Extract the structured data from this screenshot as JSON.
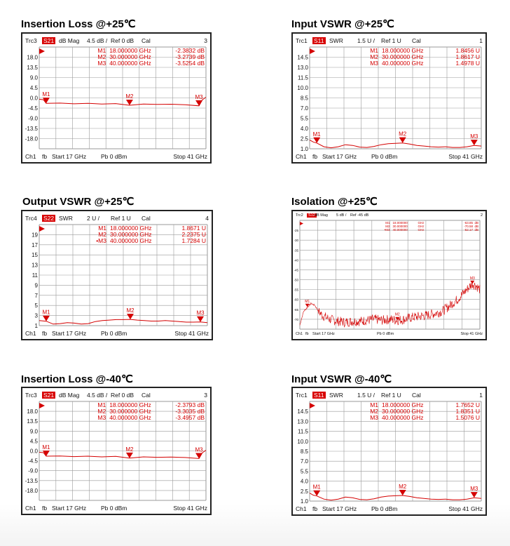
{
  "colors": {
    "trace": "#d40000",
    "grid": "#9a9a9a",
    "frame": "#222222",
    "badge": "#d80000"
  },
  "chart_data": [
    {
      "type": "line",
      "title": "Insertion Loss @+25℃",
      "header": {
        "trc": "Trc3",
        "param": "S21",
        "format": "dB Mag",
        "scale": "4.5 dB /",
        "ref": "Ref 0 dB",
        "cal": "Cal",
        "num": "3"
      },
      "footer": {
        "ch": "Ch1",
        "fb": "fb",
        "start": "Start  17 GHz",
        "pb": "Pb    0 dBm",
        "stop": "Stop  41 GHz"
      },
      "yticks": [
        "18.0",
        "13.5",
        "9.0",
        "4.5",
        "0.0",
        "-4.5",
        "-9.0",
        "-13.5",
        "-18.0"
      ],
      "ylim": [
        -22.5,
        22.5
      ],
      "xlim": [
        17,
        41
      ],
      "series": [
        {
          "x": [
            17,
            17.6,
            18,
            20,
            22,
            24,
            26,
            28,
            30,
            32,
            34,
            36,
            38,
            40,
            40.5,
            41
          ],
          "y": [
            -0.6,
            -0.8,
            -2.38,
            -2.3,
            -2.6,
            -2.4,
            -2.7,
            -2.5,
            -3.27,
            -2.7,
            -2.9,
            -2.8,
            -3.0,
            -3.52,
            -0.8,
            0.3
          ]
        }
      ],
      "markers": [
        {
          "label": "M1",
          "name": "M1",
          "freq": "18.000000  GHz",
          "value": "-2.3832  dB",
          "x": 18,
          "y": -2.38
        },
        {
          "label": "M2",
          "name": "M2",
          "freq": "30.000000  GHz",
          "value": "-3.2739  dB",
          "x": 30,
          "y": -3.27
        },
        {
          "label": "M3",
          "name": "M3",
          "freq": "40.000000  GHz",
          "value": "-3.5254  dB",
          "x": 40,
          "y": -3.52
        }
      ]
    },
    {
      "type": "line",
      "title": "Input VSWR @+25℃",
      "header": {
        "trc": "Trc1",
        "param": "S11",
        "format": "SWR",
        "scale": "1.5 U /",
        "ref": "Ref 1 U",
        "cal": "Cal",
        "num": "1"
      },
      "footer": {
        "ch": "Ch1",
        "fb": "fb",
        "start": "Start  17 GHz",
        "pb": "Pb    0 dBm",
        "stop": "Stop  41 GHz"
      },
      "yticks": [
        "14.5",
        "13.0",
        "11.5",
        "10.0",
        "8.5",
        "7.0",
        "5.5",
        "4.0",
        "2.5",
        "1.0"
      ],
      "ylim": [
        1,
        16
      ],
      "xlim": [
        17,
        41
      ],
      "series": [
        {
          "x": [
            17,
            17.5,
            18,
            19,
            20,
            21,
            22,
            23,
            24,
            25,
            26,
            27,
            28,
            29,
            30,
            31,
            32,
            33,
            34,
            35,
            36,
            37,
            38,
            39,
            40,
            41
          ],
          "y": [
            2.3,
            2.0,
            1.85,
            1.3,
            1.15,
            1.3,
            1.6,
            1.5,
            1.25,
            1.2,
            1.35,
            1.6,
            1.75,
            1.8,
            1.86,
            1.7,
            1.5,
            1.4,
            1.3,
            1.25,
            1.3,
            1.2,
            1.2,
            1.3,
            1.5,
            1.4
          ]
        }
      ],
      "markers": [
        {
          "label": "M1",
          "name": "M1",
          "freq": "18.000000  GHz",
          "value": "1.8456  U",
          "x": 18,
          "y": 1.85
        },
        {
          "label": "M2",
          "name": "M2",
          "freq": "30.000000  GHz",
          "value": "1.8617  U",
          "x": 30,
          "y": 1.86
        },
        {
          "label": "M3",
          "name": "M3",
          "freq": "40.000000  GHz",
          "value": "1.4978  U",
          "x": 40,
          "y": 1.5
        }
      ]
    },
    {
      "type": "line",
      "title": "Output VSWR @+25℃",
      "header": {
        "trc": "Trc4",
        "param": "S22",
        "format": "SWR",
        "scale": "2 U /",
        "ref": "Ref 1 U",
        "cal": "Cal",
        "num": "4"
      },
      "footer": {
        "ch": "Ch1",
        "fb": "fb",
        "start": "Start  17 GHz",
        "pb": "Pb    0 dBm",
        "stop": "Stop  41 GHz"
      },
      "yticks": [
        "19",
        "17",
        "15",
        "13",
        "11",
        "9",
        "7",
        "5",
        "3",
        "1"
      ],
      "ylim": [
        1,
        21
      ],
      "xlim": [
        17,
        41
      ],
      "series": [
        {
          "x": [
            17,
            18,
            19,
            20,
            21,
            22,
            23,
            24,
            25,
            26,
            27,
            28,
            29,
            30,
            31,
            32,
            33,
            34,
            35,
            36,
            37,
            38,
            39,
            40,
            41
          ],
          "y": [
            2.0,
            1.88,
            1.3,
            1.4,
            1.6,
            1.5,
            1.3,
            1.4,
            1.8,
            2.0,
            2.1,
            2.2,
            2.2,
            2.24,
            2.1,
            2.0,
            1.9,
            1.9,
            2.0,
            1.9,
            1.8,
            1.7,
            1.7,
            1.73,
            1.6
          ]
        }
      ],
      "markers": [
        {
          "label": "M1",
          "name": "M1",
          "freq": "18.000000  GHz",
          "value": "1.8671  U",
          "x": 18,
          "y": 1.87
        },
        {
          "label": "M2",
          "name": "M2",
          "freq": "30.000000  GHz",
          "value": "2.2375  U",
          "x": 30,
          "y": 2.24
        },
        {
          "label": "M3",
          "name": "•M3",
          "freq": "40.000000  GHz",
          "value": "1.7284  U",
          "x": 40,
          "y": 1.73
        }
      ]
    },
    {
      "type": "line",
      "title": "Isolation @+25℃",
      "header": {
        "trc": "Trc2",
        "param": "S12",
        "format": "dB Mag",
        "scale": "5 dB /",
        "ref": "Ref -45 dB",
        "cal": "",
        "num": "2"
      },
      "footer": {
        "ch": "Ch1",
        "fb": "fb",
        "start": "Start  17 GHz",
        "pb": "Pb    0 dBm",
        "stop": "Stop  41 GHz"
      },
      "yticks": [
        "-25",
        "-30",
        "-35",
        "-40",
        "-45",
        "-50",
        "-55",
        "-60",
        "-65",
        "-70"
      ],
      "ylim": [
        -75,
        -20
      ],
      "xlim": [
        17,
        41
      ],
      "series": [
        {
          "x": [
            17,
            17.5,
            18,
            18.5,
            19,
            19.5,
            20,
            21,
            22,
            23,
            24,
            25,
            26,
            27,
            28,
            29,
            30,
            31,
            32,
            33,
            34,
            35,
            36,
            37,
            38,
            39,
            39.5,
            40,
            40.5,
            41
          ],
          "y": [
            -73,
            -66,
            -64,
            -62,
            -63,
            -66,
            -68,
            -70,
            -71,
            -71.5,
            -71,
            -71,
            -70.5,
            -70,
            -70.5,
            -70,
            -70.5,
            -70,
            -69,
            -68.5,
            -68,
            -67,
            -66,
            -63,
            -60,
            -56,
            -54,
            -52,
            -53,
            -55
          ]
        }
      ],
      "noise": 2.5,
      "markers": [
        {
          "label": "M1",
          "name": "M1",
          "freq": "18.000000",
          "unit": "GHz",
          "value": "-63.85",
          "vunit": "dB",
          "x": 18,
          "y": -63.85
        },
        {
          "label": "M2",
          "name": "M2",
          "freq": "30.000000",
          "unit": "GHz",
          "value": "-70.58",
          "vunit": "dB",
          "x": 30,
          "y": -70.58
        },
        {
          "label": "M3",
          "name": "•M3",
          "freq": "40.000000",
          "unit": "GHz",
          "value": "-52.17",
          "vunit": "dB",
          "x": 40,
          "y": -52.17
        }
      ]
    },
    {
      "type": "line",
      "title": "Insertion Loss @-40℃",
      "header": {
        "trc": "Trc3",
        "param": "S21",
        "format": "dB Mag",
        "scale": "4.5 dB /",
        "ref": "Ref 0 dB",
        "cal": "Cal",
        "num": "3"
      },
      "footer": {
        "ch": "Ch1",
        "fb": "fb",
        "start": "Start  17 GHz",
        "pb": "Pb    0 dBm",
        "stop": "Stop  41 GHz"
      },
      "yticks": [
        "18.0",
        "13.5",
        "9.0",
        "4.5",
        "0.0",
        "-4.5",
        "-9.0",
        "-13.5",
        "-18.0"
      ],
      "ylim": [
        -22.5,
        22.5
      ],
      "xlim": [
        17,
        41
      ],
      "series": [
        {
          "x": [
            17,
            17.6,
            18,
            20,
            22,
            24,
            26,
            28,
            30,
            32,
            34,
            36,
            38,
            40,
            40.5,
            41
          ],
          "y": [
            -0.6,
            -0.8,
            -2.38,
            -2.3,
            -2.6,
            -2.4,
            -2.7,
            -2.5,
            -3.3,
            -2.7,
            -2.9,
            -2.8,
            -3.0,
            -3.49,
            -0.8,
            0.3
          ]
        }
      ],
      "markers": [
        {
          "label": "M1",
          "name": "M1",
          "freq": "18.000000  GHz",
          "value": "-2.3793  dB",
          "x": 18,
          "y": -2.38
        },
        {
          "label": "M2",
          "name": "M2",
          "freq": "30.000000  GHz",
          "value": "-3.3035  dB",
          "x": 30,
          "y": -3.3
        },
        {
          "label": "M3",
          "name": "M3",
          "freq": "40.000000  GHz",
          "value": "-3.4957  dB",
          "x": 40,
          "y": -3.5
        }
      ]
    },
    {
      "type": "line",
      "title": "Input VSWR @-40℃",
      "header": {
        "trc": "Trc1",
        "param": "S11",
        "format": "SWR",
        "scale": "1.5 U /",
        "ref": "Ref 1 U",
        "cal": "Cal",
        "num": "1"
      },
      "footer": {
        "ch": "Ch1",
        "fb": "fb",
        "start": "Start  17 GHz",
        "pb": "Pb    0 dBm",
        "stop": "Stop  41 GHz"
      },
      "yticks": [
        "14.5",
        "13.0",
        "11.5",
        "10.0",
        "8.5",
        "7.0",
        "5.5",
        "4.0",
        "2.5",
        "1.0"
      ],
      "ylim": [
        1,
        16
      ],
      "xlim": [
        17,
        41
      ],
      "series": [
        {
          "x": [
            17,
            17.5,
            18,
            19,
            20,
            21,
            22,
            23,
            24,
            25,
            26,
            27,
            28,
            29,
            30,
            31,
            32,
            33,
            34,
            35,
            36,
            37,
            38,
            39,
            40,
            41
          ],
          "y": [
            2.2,
            1.9,
            1.77,
            1.3,
            1.15,
            1.3,
            1.6,
            1.5,
            1.25,
            1.2,
            1.35,
            1.6,
            1.75,
            1.8,
            1.84,
            1.7,
            1.5,
            1.4,
            1.3,
            1.25,
            1.3,
            1.2,
            1.2,
            1.3,
            1.51,
            1.4
          ]
        }
      ],
      "markers": [
        {
          "label": "M1",
          "name": "M1",
          "freq": "18.000000  GHz",
          "value": "1.7652  U",
          "x": 18,
          "y": 1.77
        },
        {
          "label": "M2",
          "name": "M2",
          "freq": "30.000000  GHz",
          "value": "1.8351  U",
          "x": 30,
          "y": 1.84
        },
        {
          "label": "M3",
          "name": "M3",
          "freq": "40.000000  GHz",
          "value": "1.5076  U",
          "x": 40,
          "y": 1.51
        }
      ]
    }
  ]
}
